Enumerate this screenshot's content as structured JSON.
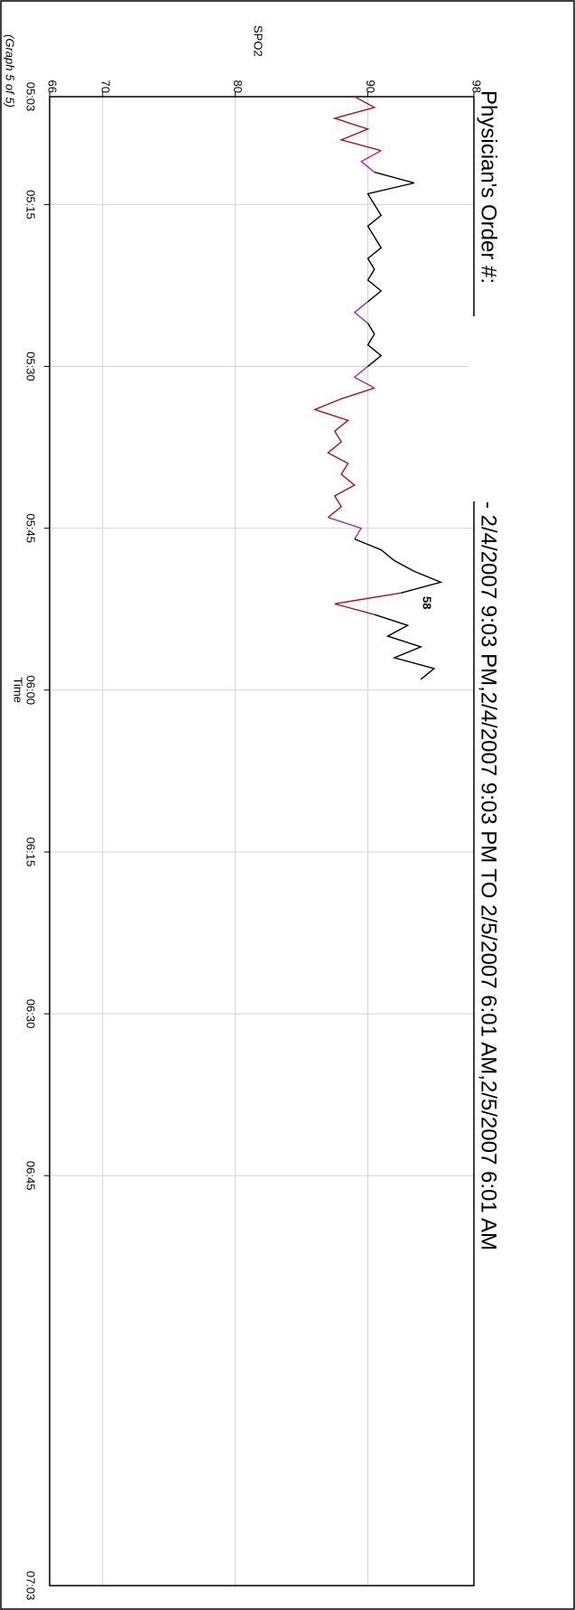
{
  "chart_data": {
    "type": "line",
    "title": "Physician's Order #:",
    "subtitle": "- 2/4/2007 9:03 PM,2/4/2007 9:03 PM  TO  2/5/2007 6:01 AM,2/5/2007 6:01 AM",
    "ylabel": "SPO2",
    "xlabel": "Time",
    "note": "(Graph 5 of 5)",
    "range_labels": [
      "05:03",
      "07:03"
    ],
    "annotations": [
      "58"
    ],
    "xlim": [
      "05:05",
      "07:23"
    ],
    "xticks": [
      "05:15",
      "05:30",
      "05:45",
      "06:00",
      "06:15",
      "06:30",
      "06:45"
    ],
    "ylim": [
      66,
      98
    ],
    "yticks": [
      66,
      70,
      80,
      90,
      98
    ],
    "grid": true,
    "series": [
      {
        "color": "#a01818",
        "x": [
          "05:05",
          "05:06",
          "05:07",
          "05:08",
          "05:09",
          "05:10"
        ],
        "values": [
          89,
          90.5,
          87.5,
          90,
          88,
          91
        ]
      },
      {
        "color": "#9b2fae",
        "x": [
          "05:10",
          "05:11",
          "05:12"
        ],
        "values": [
          91,
          89.5,
          90.5
        ]
      },
      {
        "color": "#000000",
        "x": [
          "05:12",
          "05:13",
          "05:14",
          "05:15",
          "05:16",
          "05:17",
          "05:18",
          "05:19",
          "05:20",
          "05:21",
          "05:22",
          "05:23",
          "05:24"
        ],
        "values": [
          90.5,
          93.5,
          90,
          90.5,
          91,
          90,
          90.5,
          91,
          90,
          90.5,
          90,
          91,
          90
        ]
      },
      {
        "color": "#9b2fae",
        "x": [
          "05:24",
          "05:25",
          "05:26"
        ],
        "values": [
          90,
          89,
          90
        ]
      },
      {
        "color": "#000000",
        "x": [
          "05:26",
          "05:27",
          "05:28",
          "05:29",
          "05:30"
        ],
        "values": [
          90,
          90.5,
          90,
          91,
          90
        ]
      },
      {
        "color": "#9b2fae",
        "x": [
          "05:30",
          "05:31",
          "05:32"
        ],
        "values": [
          90,
          89,
          90.5
        ]
      },
      {
        "color": "#a01818",
        "x": [
          "05:32",
          "05:33",
          "05:34",
          "05:35",
          "05:36",
          "05:37",
          "05:38",
          "05:39",
          "05:40",
          "05:41",
          "05:42",
          "05:43",
          "05:44"
        ],
        "values": [
          90.5,
          88,
          86,
          88.5,
          87.5,
          88,
          87,
          88.5,
          88,
          89,
          87.5,
          88,
          87
        ]
      },
      {
        "color": "#9b2fae",
        "x": [
          "05:44",
          "05:45",
          "05:46"
        ],
        "values": [
          87,
          89.5,
          89
        ]
      },
      {
        "color": "#000000",
        "x": [
          "05:46",
          "05:47",
          "05:48",
          "05:49",
          "05:50",
          "05:51"
        ],
        "values": [
          89,
          91,
          92,
          93.5,
          95.5,
          92.5
        ]
      },
      {
        "color": "#a01818",
        "x": [
          "05:51",
          "05:52",
          "05:53"
        ],
        "values": [
          92.5,
          87.5,
          90.5
        ]
      },
      {
        "color": "#000000",
        "x": [
          "05:53",
          "05:54",
          "05:55",
          "05:56",
          "05:57",
          "05:58",
          "05:59"
        ],
        "values": [
          90.5,
          93,
          91.5,
          94,
          92,
          95,
          94
        ]
      }
    ]
  }
}
